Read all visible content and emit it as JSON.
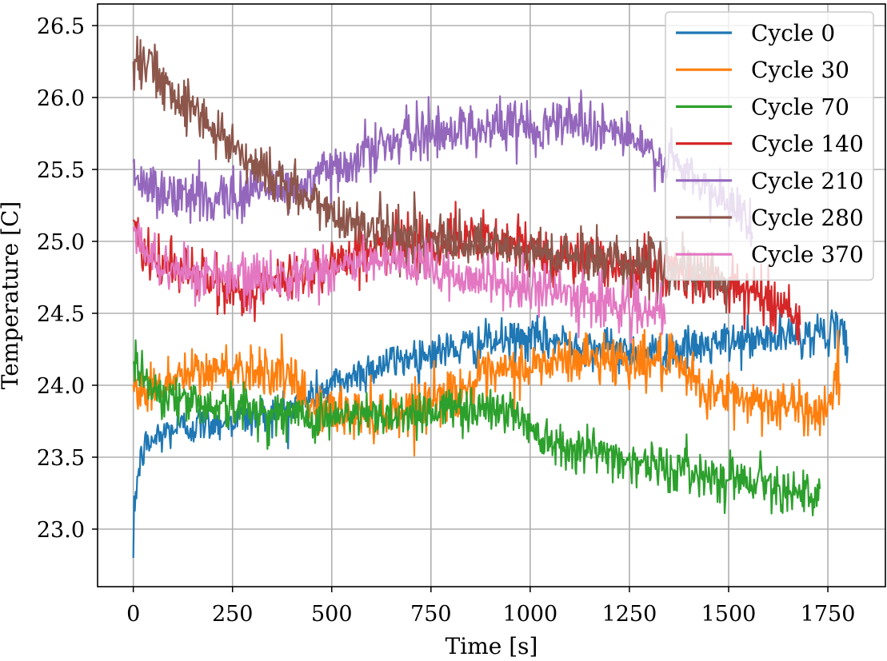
{
  "chart_data": {
    "type": "line",
    "xlabel": "Time [s]",
    "ylabel": "Temperature [C]",
    "xlim": [
      -90,
      1895
    ],
    "ylim": [
      22.6,
      26.65
    ],
    "xticks": [
      0,
      250,
      500,
      750,
      1000,
      1250,
      1500,
      1750
    ],
    "yticks": [
      23.0,
      23.5,
      24.0,
      24.5,
      25.0,
      25.5,
      26.0,
      26.5
    ],
    "xtick_labels": [
      "0",
      "250",
      "500",
      "750",
      "1000",
      "1250",
      "1500",
      "1750"
    ],
    "ytick_labels": [
      "23.0",
      "23.5",
      "24.0",
      "24.5",
      "25.0",
      "25.5",
      "26.0",
      "26.5"
    ],
    "grid": true,
    "legend_position": "top-right",
    "series": [
      {
        "name": "Cycle 0",
        "color": "#1f77b4",
        "noise": 0.07,
        "x": [
          0,
          3,
          10,
          25,
          50,
          100,
          150,
          200,
          300,
          400,
          500,
          600,
          700,
          800,
          900,
          1000,
          1100,
          1200,
          1300,
          1400,
          1500,
          1600,
          1700,
          1750,
          1800
        ],
        "y": [
          22.8,
          23.15,
          23.35,
          23.55,
          23.62,
          23.7,
          23.72,
          23.75,
          23.78,
          23.85,
          24.0,
          24.12,
          24.2,
          24.25,
          24.3,
          24.32,
          24.3,
          24.25,
          24.22,
          24.25,
          24.3,
          24.32,
          24.35,
          24.38,
          24.32
        ]
      },
      {
        "name": "Cycle 30",
        "color": "#ff7f0e",
        "noise": 0.09,
        "x": [
          0,
          30,
          100,
          200,
          300,
          380,
          450,
          550,
          650,
          750,
          850,
          950,
          1050,
          1150,
          1250,
          1350,
          1450,
          1550,
          1650,
          1740,
          1780
        ],
        "y": [
          24.0,
          23.95,
          24.05,
          24.1,
          24.12,
          24.08,
          23.85,
          23.8,
          23.8,
          23.9,
          24.0,
          24.1,
          24.15,
          24.2,
          24.18,
          24.15,
          23.95,
          23.9,
          23.85,
          23.82,
          24.1
        ]
      },
      {
        "name": "Cycle 70",
        "color": "#2ca02c",
        "noise": 0.08,
        "x": [
          0,
          20,
          60,
          150,
          250,
          350,
          450,
          550,
          650,
          750,
          850,
          950,
          1000,
          1050,
          1150,
          1250,
          1350,
          1450,
          1550,
          1650,
          1700,
          1730
        ],
        "y": [
          24.15,
          24.1,
          23.95,
          23.88,
          23.85,
          23.8,
          23.78,
          23.78,
          23.8,
          23.82,
          23.85,
          23.82,
          23.72,
          23.62,
          23.55,
          23.48,
          23.42,
          23.38,
          23.35,
          23.3,
          23.22,
          23.2
        ]
      },
      {
        "name": "Cycle 140",
        "color": "#d62728",
        "noise": 0.09,
        "x": [
          0,
          20,
          60,
          120,
          200,
          300,
          400,
          500,
          600,
          700,
          800,
          900,
          1000,
          1100,
          1200,
          1300,
          1400,
          1500,
          1600,
          1650,
          1680
        ],
        "y": [
          25.15,
          24.9,
          24.85,
          24.82,
          24.7,
          24.65,
          24.75,
          24.85,
          24.95,
          25.0,
          25.02,
          25.0,
          24.95,
          24.9,
          24.85,
          24.82,
          24.75,
          24.7,
          24.6,
          24.55,
          24.4
        ]
      },
      {
        "name": "Cycle 210",
        "color": "#9467bd",
        "noise": 0.09,
        "x": [
          0,
          20,
          80,
          200,
          300,
          400,
          450,
          500,
          600,
          700,
          800,
          900,
          1000,
          1100,
          1200,
          1250,
          1300,
          1350,
          1400,
          1450,
          1500,
          1560
        ],
        "y": [
          25.55,
          25.4,
          25.32,
          25.3,
          25.35,
          25.38,
          25.4,
          25.5,
          25.65,
          25.72,
          25.78,
          25.8,
          25.8,
          25.85,
          25.78,
          25.72,
          25.6,
          25.55,
          25.45,
          25.35,
          25.25,
          25.15
        ]
      },
      {
        "name": "Cycle 280",
        "color": "#8c564b",
        "noise": 0.09,
        "x": [
          0,
          20,
          60,
          120,
          200,
          300,
          400,
          500,
          600,
          700,
          800,
          900,
          1000,
          1100,
          1200,
          1300,
          1400,
          1500
        ],
        "y": [
          26.25,
          26.3,
          26.15,
          26.0,
          25.8,
          25.55,
          25.35,
          25.2,
          25.1,
          25.02,
          24.98,
          24.95,
          24.92,
          24.9,
          24.88,
          24.85,
          24.78,
          24.72
        ]
      },
      {
        "name": "Cycle 370",
        "color": "#e377c2",
        "noise": 0.09,
        "x": [
          0,
          20,
          60,
          120,
          200,
          300,
          400,
          500,
          600,
          700,
          800,
          900,
          1000,
          1100,
          1200,
          1300,
          1340
        ],
        "y": [
          25.1,
          24.95,
          24.85,
          24.8,
          24.75,
          24.72,
          24.78,
          24.82,
          24.85,
          24.82,
          24.78,
          24.72,
          24.68,
          24.62,
          24.58,
          24.5,
          24.45
        ]
      }
    ]
  }
}
